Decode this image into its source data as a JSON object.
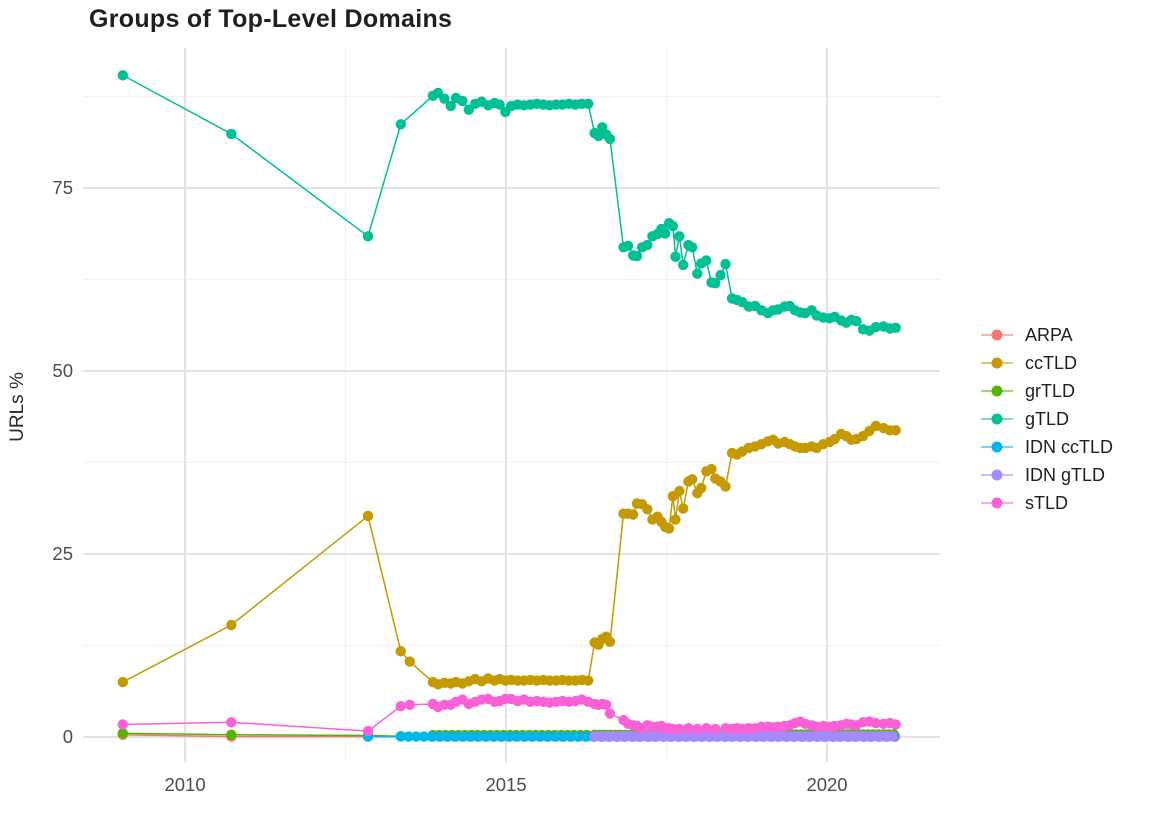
{
  "chart_data": {
    "type": "line",
    "title": "Groups of Top-Level Domains",
    "xlabel": "",
    "ylabel": "URLs %",
    "x_ticks": [
      2010,
      2015,
      2020
    ],
    "x_minor_ticks": [
      2012.5,
      2017.5
    ],
    "y_ticks": [
      0,
      25,
      50,
      75
    ],
    "y_minor_ticks": [
      12.5,
      37.5,
      62.5,
      87.5
    ],
    "xlim": [
      2008.41,
      2021.76
    ],
    "ylim": [
      -3.42,
      94.13
    ],
    "grid": "major+minor",
    "legend_position": "right",
    "axis_text_color": "#4d4d4d",
    "grid_major_color": "#e3e3e3",
    "grid_minor_color": "#f2f2f2",
    "series": [
      {
        "name": "ARPA",
        "color": "#F8766D",
        "points": [
          [
            2009.03,
            0.3
          ],
          [
            2010.72,
            0.05
          ],
          [
            2012.85,
            0.05
          ]
        ],
        "spans": [
          {
            "from": 2013.86,
            "to": 2021.07,
            "step": 0.12,
            "y": 0.05
          }
        ]
      },
      {
        "name": "ccTLD",
        "color": "#C49A00",
        "points": [
          [
            2009.03,
            7.5
          ],
          [
            2010.72,
            15.3
          ],
          [
            2012.85,
            30.2
          ],
          [
            2013.36,
            11.7
          ],
          [
            2013.5,
            10.3
          ],
          [
            2013.86,
            7.5
          ],
          [
            2013.94,
            7.2
          ],
          [
            2014.04,
            7.4
          ],
          [
            2014.14,
            7.3
          ],
          [
            2014.22,
            7.5
          ],
          [
            2014.32,
            7.3
          ],
          [
            2014.42,
            7.6
          ],
          [
            2014.52,
            7.9
          ],
          [
            2014.62,
            7.6
          ],
          [
            2014.72,
            8.0
          ],
          [
            2014.82,
            7.7
          ],
          [
            2014.9,
            7.9
          ],
          [
            2014.99,
            7.7
          ],
          [
            2015.08,
            7.8
          ],
          [
            2015.18,
            7.7
          ],
          [
            2015.28,
            7.7
          ],
          [
            2015.38,
            7.8
          ],
          [
            2015.48,
            7.7
          ],
          [
            2015.58,
            7.8
          ],
          [
            2015.68,
            7.7
          ],
          [
            2015.78,
            7.7
          ],
          [
            2015.88,
            7.8
          ],
          [
            2015.98,
            7.7
          ],
          [
            2016.08,
            7.7
          ],
          [
            2016.18,
            7.8
          ],
          [
            2016.28,
            7.7
          ],
          [
            2016.38,
            12.9
          ],
          [
            2016.44,
            12.6
          ],
          [
            2016.5,
            13.4
          ],
          [
            2016.56,
            13.7
          ],
          [
            2016.62,
            13.0
          ],
          [
            2016.83,
            30.5
          ],
          [
            2016.9,
            30.5
          ],
          [
            2016.98,
            30.4
          ],
          [
            2017.04,
            31.9
          ],
          [
            2017.12,
            31.8
          ],
          [
            2017.2,
            31.1
          ],
          [
            2017.28,
            29.7
          ],
          [
            2017.36,
            30.1
          ],
          [
            2017.42,
            29.4
          ],
          [
            2017.48,
            28.7
          ],
          [
            2017.54,
            28.5
          ],
          [
            2017.6,
            32.9
          ],
          [
            2017.64,
            29.7
          ],
          [
            2017.7,
            33.6
          ],
          [
            2017.76,
            31.2
          ],
          [
            2017.84,
            34.9
          ],
          [
            2017.9,
            35.2
          ],
          [
            2017.98,
            33.3
          ],
          [
            2018.04,
            34.0
          ],
          [
            2018.12,
            36.3
          ],
          [
            2018.2,
            36.6
          ],
          [
            2018.26,
            35.3
          ],
          [
            2018.34,
            34.9
          ],
          [
            2018.42,
            34.2
          ],
          [
            2018.52,
            38.8
          ],
          [
            2018.6,
            38.6
          ],
          [
            2018.68,
            39.0
          ],
          [
            2018.78,
            39.5
          ],
          [
            2018.88,
            39.7
          ],
          [
            2018.98,
            40.0
          ],
          [
            2019.08,
            40.4
          ],
          [
            2019.16,
            40.6
          ],
          [
            2019.24,
            40.1
          ],
          [
            2019.34,
            40.3
          ],
          [
            2019.42,
            40.0
          ],
          [
            2019.5,
            39.7
          ],
          [
            2019.58,
            39.5
          ],
          [
            2019.66,
            39.5
          ],
          [
            2019.76,
            39.7
          ],
          [
            2019.84,
            39.5
          ],
          [
            2019.94,
            40.0
          ],
          [
            2020.04,
            40.3
          ],
          [
            2020.12,
            40.7
          ],
          [
            2020.22,
            41.4
          ],
          [
            2020.3,
            41.1
          ],
          [
            2020.38,
            40.6
          ],
          [
            2020.46,
            40.7
          ],
          [
            2020.56,
            41.1
          ],
          [
            2020.66,
            41.8
          ],
          [
            2020.76,
            42.5
          ],
          [
            2020.88,
            42.2
          ],
          [
            2020.98,
            41.9
          ],
          [
            2021.07,
            41.9
          ]
        ]
      },
      {
        "name": "grTLD",
        "color": "#53B400",
        "points": [
          [
            2009.03,
            0.5
          ],
          [
            2010.72,
            0.3
          ],
          [
            2012.85,
            0.2
          ],
          [
            2013.36,
            0.1
          ]
        ],
        "spans": [
          {
            "from": 2013.86,
            "to": 2016.3,
            "step": 0.1,
            "y": 0.25
          },
          {
            "from": 2016.38,
            "to": 2018.5,
            "step": 0.08,
            "y": 0.3
          },
          {
            "from": 2018.56,
            "to": 2021.07,
            "step": 0.08,
            "y": 0.35
          }
        ]
      },
      {
        "name": "gTLD",
        "color": "#00C094",
        "points": [
          [
            2009.03,
            90.4
          ],
          [
            2010.72,
            82.4
          ],
          [
            2012.85,
            68.4
          ],
          [
            2013.36,
            83.7
          ],
          [
            2013.86,
            87.6
          ],
          [
            2013.94,
            88.0
          ],
          [
            2014.04,
            87.2
          ],
          [
            2014.14,
            86.2
          ],
          [
            2014.22,
            87.3
          ],
          [
            2014.32,
            86.9
          ],
          [
            2014.42,
            85.7
          ],
          [
            2014.52,
            86.5
          ],
          [
            2014.62,
            86.8
          ],
          [
            2014.72,
            86.3
          ],
          [
            2014.82,
            86.6
          ],
          [
            2014.9,
            86.4
          ],
          [
            2014.99,
            85.4
          ],
          [
            2015.08,
            86.2
          ],
          [
            2015.18,
            86.4
          ],
          [
            2015.28,
            86.3
          ],
          [
            2015.38,
            86.4
          ],
          [
            2015.48,
            86.5
          ],
          [
            2015.58,
            86.4
          ],
          [
            2015.68,
            86.3
          ],
          [
            2015.78,
            86.4
          ],
          [
            2015.88,
            86.4
          ],
          [
            2015.98,
            86.5
          ],
          [
            2016.08,
            86.4
          ],
          [
            2016.18,
            86.5
          ],
          [
            2016.28,
            86.5
          ],
          [
            2016.38,
            82.5
          ],
          [
            2016.44,
            82.1
          ],
          [
            2016.5,
            83.3
          ],
          [
            2016.56,
            82.3
          ],
          [
            2016.62,
            81.7
          ],
          [
            2016.83,
            66.9
          ],
          [
            2016.9,
            67.1
          ],
          [
            2016.98,
            65.8
          ],
          [
            2017.04,
            65.7
          ],
          [
            2017.12,
            66.9
          ],
          [
            2017.2,
            67.2
          ],
          [
            2017.28,
            68.4
          ],
          [
            2017.36,
            68.7
          ],
          [
            2017.42,
            69.4
          ],
          [
            2017.48,
            68.8
          ],
          [
            2017.54,
            70.2
          ],
          [
            2017.6,
            69.8
          ],
          [
            2017.64,
            65.6
          ],
          [
            2017.7,
            68.4
          ],
          [
            2017.76,
            64.5
          ],
          [
            2017.84,
            67.2
          ],
          [
            2017.9,
            66.9
          ],
          [
            2017.98,
            63.3
          ],
          [
            2018.04,
            64.7
          ],
          [
            2018.12,
            65.1
          ],
          [
            2018.2,
            62.1
          ],
          [
            2018.26,
            62.0
          ],
          [
            2018.34,
            63.1
          ],
          [
            2018.42,
            64.6
          ],
          [
            2018.52,
            59.9
          ],
          [
            2018.6,
            59.7
          ],
          [
            2018.68,
            59.4
          ],
          [
            2018.78,
            58.8
          ],
          [
            2018.88,
            58.9
          ],
          [
            2018.98,
            58.3
          ],
          [
            2019.08,
            57.9
          ],
          [
            2019.16,
            58.3
          ],
          [
            2019.24,
            58.4
          ],
          [
            2019.34,
            58.8
          ],
          [
            2019.42,
            58.9
          ],
          [
            2019.5,
            58.3
          ],
          [
            2019.58,
            58.0
          ],
          [
            2019.66,
            57.9
          ],
          [
            2019.76,
            58.3
          ],
          [
            2019.84,
            57.6
          ],
          [
            2019.94,
            57.3
          ],
          [
            2020.04,
            57.2
          ],
          [
            2020.12,
            57.4
          ],
          [
            2020.22,
            56.9
          ],
          [
            2020.3,
            56.6
          ],
          [
            2020.38,
            57.0
          ],
          [
            2020.46,
            56.8
          ],
          [
            2020.56,
            55.7
          ],
          [
            2020.66,
            55.5
          ],
          [
            2020.76,
            56.0
          ],
          [
            2020.88,
            56.1
          ],
          [
            2020.98,
            55.8
          ],
          [
            2021.07,
            55.9
          ]
        ]
      },
      {
        "name": "IDN ccTLD",
        "color": "#00B6EB",
        "points": [
          [
            2012.85,
            0.05
          ]
        ],
        "spans": [
          {
            "from": 2013.36,
            "to": 2021.07,
            "step": 0.12,
            "y": 0.05
          }
        ]
      },
      {
        "name": "IDN gTLD",
        "color": "#A58AFF",
        "points": [],
        "spans": [
          {
            "from": 2016.38,
            "to": 2021.07,
            "step": 0.08,
            "y": 0.1
          }
        ]
      },
      {
        "name": "sTLD",
        "color": "#FB61D7",
        "points": [
          [
            2009.03,
            1.7
          ],
          [
            2010.72,
            2.0
          ],
          [
            2012.85,
            0.8
          ],
          [
            2013.36,
            4.2
          ],
          [
            2013.5,
            4.4
          ],
          [
            2013.86,
            4.5
          ],
          [
            2013.94,
            4.1
          ],
          [
            2014.04,
            4.4
          ],
          [
            2014.14,
            4.4
          ],
          [
            2014.22,
            4.8
          ],
          [
            2014.32,
            5.1
          ],
          [
            2014.42,
            4.5
          ],
          [
            2014.52,
            4.8
          ],
          [
            2014.62,
            5.1
          ],
          [
            2014.72,
            5.2
          ],
          [
            2014.82,
            4.8
          ],
          [
            2014.9,
            4.9
          ],
          [
            2014.99,
            5.2
          ],
          [
            2015.08,
            5.2
          ],
          [
            2015.18,
            4.9
          ],
          [
            2015.28,
            5.1
          ],
          [
            2015.38,
            4.8
          ],
          [
            2015.48,
            4.9
          ],
          [
            2015.58,
            4.8
          ],
          [
            2015.68,
            4.7
          ],
          [
            2015.78,
            4.8
          ],
          [
            2015.88,
            4.9
          ],
          [
            2015.98,
            4.8
          ],
          [
            2016.08,
            4.9
          ],
          [
            2016.18,
            5.1
          ],
          [
            2016.28,
            4.8
          ],
          [
            2016.38,
            4.5
          ],
          [
            2016.44,
            4.4
          ],
          [
            2016.5,
            4.5
          ],
          [
            2016.56,
            4.4
          ],
          [
            2016.62,
            3.2
          ],
          [
            2016.83,
            2.3
          ],
          [
            2016.9,
            1.8
          ],
          [
            2016.98,
            1.6
          ],
          [
            2017.04,
            1.5
          ],
          [
            2017.12,
            1.2
          ],
          [
            2017.2,
            1.6
          ],
          [
            2017.28,
            1.4
          ],
          [
            2017.36,
            1.4
          ],
          [
            2017.42,
            1.5
          ],
          [
            2017.48,
            1.2
          ],
          [
            2017.54,
            1.2
          ],
          [
            2017.6,
            1.1
          ],
          [
            2017.7,
            1.1
          ],
          [
            2017.84,
            1.2
          ],
          [
            2017.98,
            1.1
          ],
          [
            2018.12,
            1.2
          ],
          [
            2018.26,
            1.1
          ],
          [
            2018.42,
            1.2
          ],
          [
            2018.52,
            1.1
          ],
          [
            2018.6,
            1.2
          ],
          [
            2018.68,
            1.1
          ],
          [
            2018.78,
            1.2
          ],
          [
            2018.88,
            1.2
          ],
          [
            2018.98,
            1.4
          ],
          [
            2019.08,
            1.4
          ],
          [
            2019.16,
            1.3
          ],
          [
            2019.24,
            1.4
          ],
          [
            2019.34,
            1.5
          ],
          [
            2019.42,
            1.6
          ],
          [
            2019.5,
            1.9
          ],
          [
            2019.58,
            2.1
          ],
          [
            2019.66,
            1.8
          ],
          [
            2019.76,
            1.6
          ],
          [
            2019.84,
            1.4
          ],
          [
            2019.94,
            1.5
          ],
          [
            2020.04,
            1.4
          ],
          [
            2020.12,
            1.5
          ],
          [
            2020.22,
            1.6
          ],
          [
            2020.3,
            1.8
          ],
          [
            2020.38,
            1.7
          ],
          [
            2020.46,
            1.6
          ],
          [
            2020.56,
            2.0
          ],
          [
            2020.66,
            2.1
          ],
          [
            2020.76,
            1.9
          ],
          [
            2020.88,
            1.8
          ],
          [
            2020.98,
            1.9
          ],
          [
            2021.07,
            1.7
          ]
        ]
      }
    ]
  }
}
